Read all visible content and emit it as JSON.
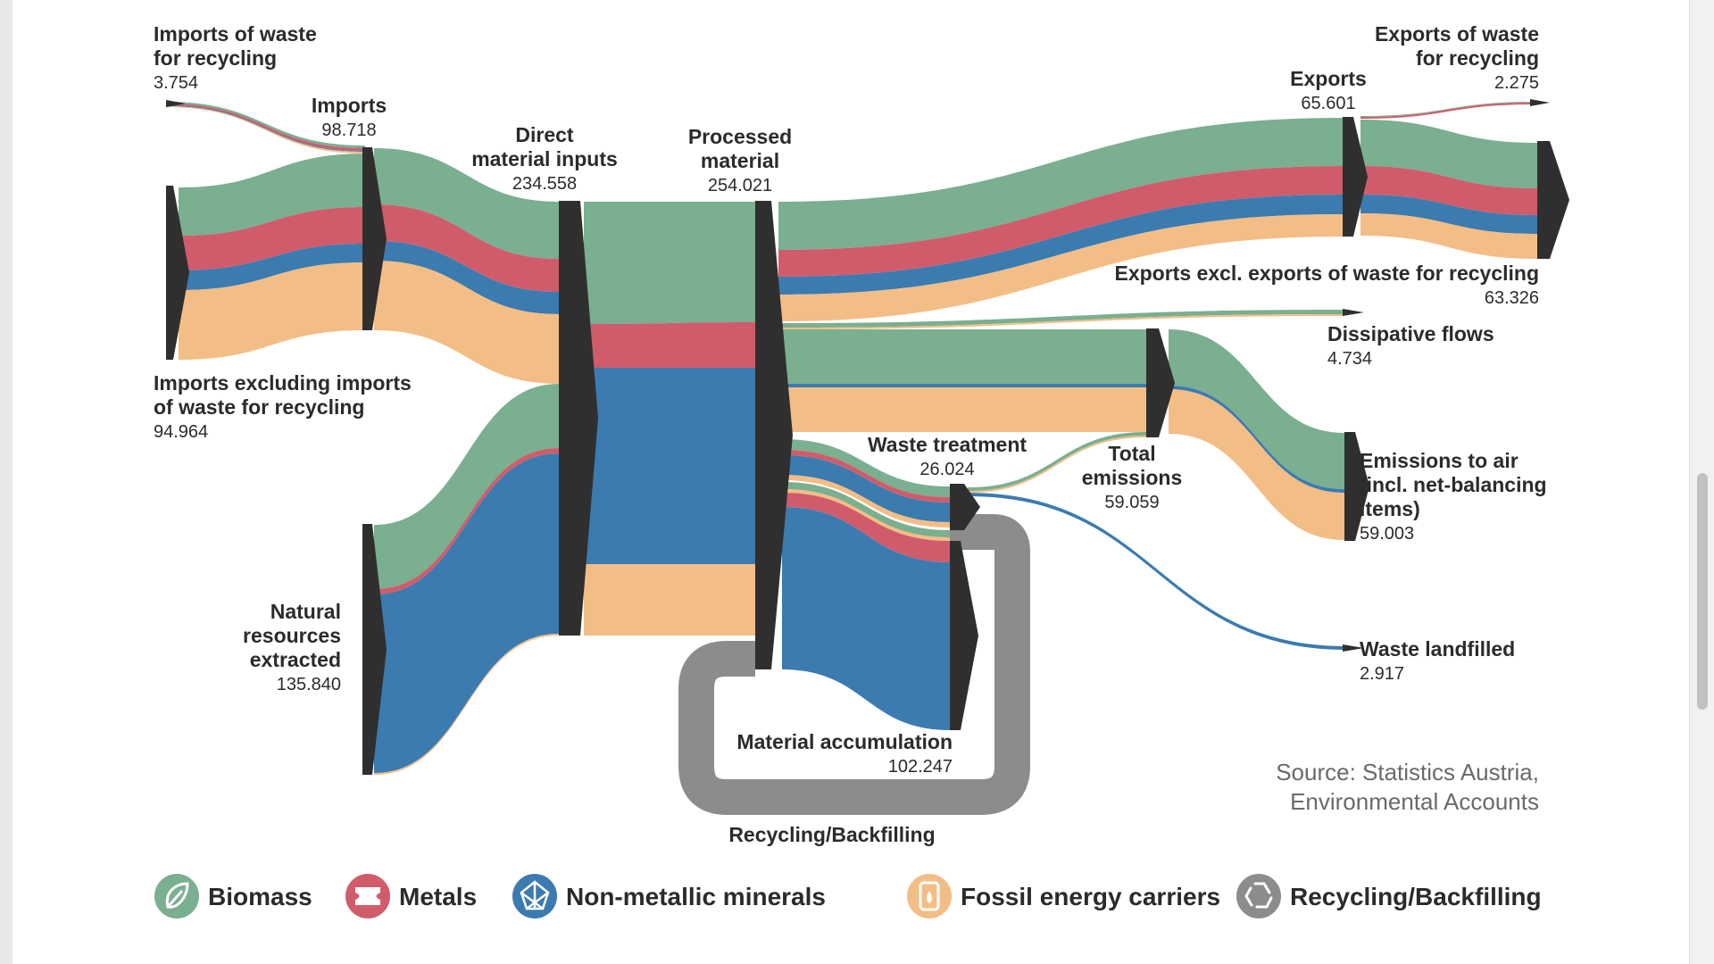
{
  "colors": {
    "biomass": "#7aaf8f",
    "metals": "#d05c6b",
    "minerals": "#3b7bb0",
    "fossil": "#f3bd86",
    "recycling": "#8c8c8c",
    "node": "#2f2f2f"
  },
  "nodes": {
    "imports_waste": {
      "name_lines": [
        "Imports of waste",
        "for recycling"
      ],
      "value": "3.754"
    },
    "imports": {
      "name_lines": [
        "Imports"
      ],
      "value": "98.718"
    },
    "dmi": {
      "name_lines": [
        "Direct",
        "material inputs"
      ],
      "value": "234.558"
    },
    "processed": {
      "name_lines": [
        "Processed",
        "material"
      ],
      "value": "254.021"
    },
    "exports": {
      "name_lines": [
        "Exports"
      ],
      "value": "65.601"
    },
    "exports_waste": {
      "name_lines": [
        "Exports of waste",
        "for recycling"
      ],
      "value": "2.275"
    },
    "exports_excl": {
      "name_lines": [
        "Exports excl. exports of waste for recycling"
      ],
      "value": "63.326"
    },
    "dissipative": {
      "name_lines": [
        "Dissipative flows"
      ],
      "value": "4.734"
    },
    "imports_excl": {
      "name_lines": [
        "Imports excluding imports",
        "of waste for recycling"
      ],
      "value": "94.964"
    },
    "natural": {
      "name_lines": [
        "Natural",
        "resources",
        "extracted"
      ],
      "value": "135.840"
    },
    "waste_treatment": {
      "name_lines": [
        "Waste treatment"
      ],
      "value": "26.024"
    },
    "total_emissions": {
      "name_lines": [
        "Total",
        "emissions"
      ],
      "value": "59.059"
    },
    "emissions_air": {
      "name_lines": [
        "Emissions to air",
        "(incl. net-balancing",
        "items)"
      ],
      "value": "59.003"
    },
    "landfilled": {
      "name_lines": [
        "Waste landfilled"
      ],
      "value": "2.917"
    },
    "accumulation": {
      "name_lines": [
        "Material accumulation"
      ],
      "value": "102.247"
    },
    "recycling_loop": {
      "name_lines": [
        "Recycling/Backfilling"
      ]
    }
  },
  "source": {
    "lines": [
      "Source: Statistics Austria,",
      "Environmental Accounts"
    ]
  },
  "legend": [
    {
      "key": "biomass",
      "label": "Biomass",
      "icon": "leaf-icon"
    },
    {
      "key": "metals",
      "label": "Metals",
      "icon": "metal-beam-icon"
    },
    {
      "key": "minerals",
      "label": "Non-metallic minerals",
      "icon": "mineral-crystal-icon"
    },
    {
      "key": "fossil",
      "label": "Fossil energy carriers",
      "icon": "oil-drop-icon"
    },
    {
      "key": "recycling",
      "label": "Recycling/Backfilling",
      "icon": "recycle-icon"
    }
  ]
}
